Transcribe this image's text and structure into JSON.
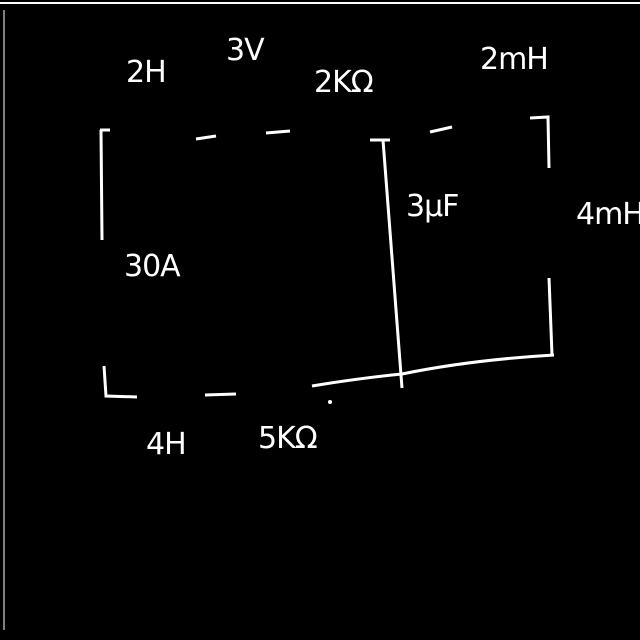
{
  "labels": {
    "top_left_inductor": "2H",
    "top_voltage": "3V",
    "top_resistor": "2KΩ",
    "top_right_inductor": "2mH",
    "current_source": "30A",
    "capacitor": "3μF",
    "right_inductor": "4mH",
    "bottom_left_inductor": "4H",
    "bottom_resistor": "5KΩ"
  },
  "colors": {
    "ink": "#ffffff",
    "background": "#000000"
  }
}
